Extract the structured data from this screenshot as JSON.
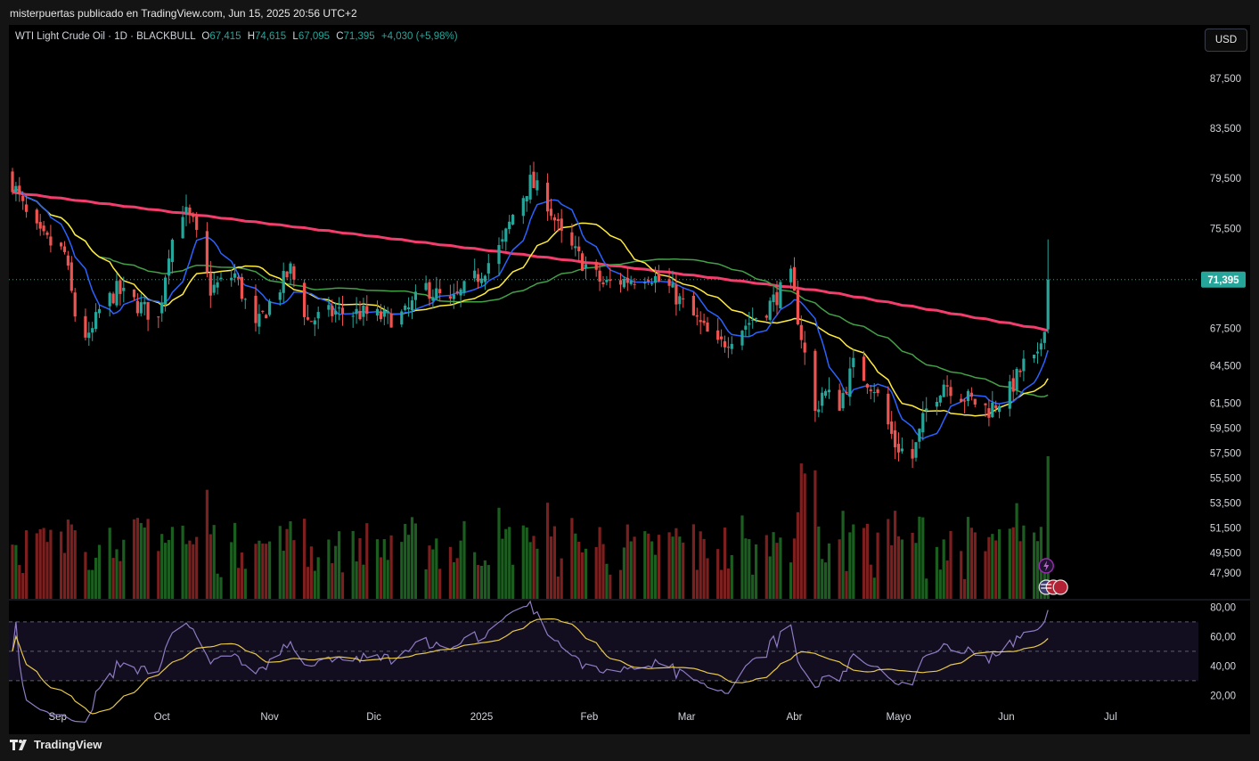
{
  "header": {
    "published_by": "misterpuertas publicado en TradingView.com, Jun 15, 2025 20:56 UTC+2"
  },
  "legend": {
    "symbol": "WTI Light Crude Oil · 1D · BLACKBULL",
    "open_label": "O",
    "open": "67,415",
    "high_label": "H",
    "high": "74,615",
    "low_label": "L",
    "low": "67,095",
    "close_label": "C",
    "close": "71,395",
    "change": "+4,030 (+5,98%)"
  },
  "currency_button": "USD",
  "price_tag": "71,395",
  "brand": "TradingView",
  "colors": {
    "up": "#26a69a",
    "down": "#ef5350",
    "vol_up": "#1b5e20",
    "vol_down": "#7b1f1f",
    "ma200": "#f23d6d",
    "ma50": "#43a047",
    "ma20": "#ffeb3b",
    "ma9": "#2962ff",
    "rsi": "#8e7cc3",
    "rsi_ma": "#e6c84a",
    "rsi_band": "#120d1f"
  },
  "icons": [
    "lightning-icon",
    "us-flag-icon",
    "events-icon"
  ],
  "chart_data": {
    "type": "candlestick",
    "price_axis": [
      "87,500",
      "83,500",
      "79,500",
      "75,500",
      "71,395",
      "67,500",
      "64,500",
      "61,500",
      "59,500",
      "57,500",
      "55,500",
      "53,500",
      "51,500",
      "49,500",
      "47,900"
    ],
    "price_axis_values": [
      87.5,
      83.5,
      79.5,
      75.5,
      71.395,
      67.5,
      64.5,
      61.5,
      59.5,
      57.5,
      55.5,
      53.5,
      51.5,
      49.5,
      47.9
    ],
    "rsi_axis": [
      "80,00",
      "60,00",
      "40,00",
      "20,00"
    ],
    "rsi_axis_values": [
      80,
      60,
      40,
      20
    ],
    "x_labels": [
      "Sep",
      "Oct",
      "Nov",
      "Dic",
      "2025",
      "Feb",
      "Mar",
      "Abr",
      "Mayo",
      "Jun",
      "Jul"
    ],
    "x_label_dates": [
      "2024-09-01",
      "2024-10-01",
      "2024-11-01",
      "2024-12-01",
      "2025-01-01",
      "2025-02-01",
      "2025-03-01",
      "2025-04-01",
      "2025-05-01",
      "2025-06-01",
      "2025-07-01"
    ],
    "close_anchors": [
      [
        "2024-08-19",
        79.2
      ],
      [
        "2024-08-23",
        76.5
      ],
      [
        "2024-08-27",
        74.8
      ],
      [
        "2024-09-03",
        73.5
      ],
      [
        "2024-09-06",
        68.6
      ],
      [
        "2024-09-10",
        66.5
      ],
      [
        "2024-09-13",
        68.9
      ],
      [
        "2024-09-18",
        70.5
      ],
      [
        "2024-09-25",
        69.2
      ],
      [
        "2024-09-30",
        68.2
      ],
      [
        "2024-10-03",
        73.8
      ],
      [
        "2024-10-07",
        77.0
      ],
      [
        "2024-10-10",
        75.8
      ],
      [
        "2024-10-15",
        70.6
      ],
      [
        "2024-10-22",
        71.8
      ],
      [
        "2024-10-28",
        67.4
      ],
      [
        "2024-11-01",
        69.5
      ],
      [
        "2024-11-07",
        72.2
      ],
      [
        "2024-11-12",
        68.1
      ],
      [
        "2024-11-20",
        68.8
      ],
      [
        "2024-11-27",
        68.7
      ],
      [
        "2024-12-05",
        68.3
      ],
      [
        "2024-12-10",
        68.6
      ],
      [
        "2024-12-16",
        70.8
      ],
      [
        "2024-12-23",
        69.4
      ],
      [
        "2024-12-31",
        71.7
      ],
      [
        "2025-01-07",
        74.2
      ],
      [
        "2025-01-10",
        76.6
      ],
      [
        "2025-01-15",
        79.2
      ],
      [
        "2025-01-20",
        77.6
      ],
      [
        "2025-01-24",
        74.8
      ],
      [
        "2025-01-31",
        72.5
      ],
      [
        "2025-02-05",
        71.0
      ],
      [
        "2025-02-12",
        71.4
      ],
      [
        "2025-02-18",
        71.9
      ],
      [
        "2025-02-24",
        70.7
      ],
      [
        "2025-03-03",
        68.4
      ],
      [
        "2025-03-10",
        66.0
      ],
      [
        "2025-03-17",
        67.6
      ],
      [
        "2025-03-24",
        69.1
      ],
      [
        "2025-03-31",
        71.5
      ],
      [
        "2025-04-03",
        66.9
      ],
      [
        "2025-04-07",
        60.7
      ],
      [
        "2025-04-09",
        62.4
      ],
      [
        "2025-04-14",
        61.5
      ],
      [
        "2025-04-18",
        64.5
      ],
      [
        "2025-04-24",
        62.8
      ],
      [
        "2025-04-30",
        58.2
      ],
      [
        "2025-05-05",
        57.1
      ],
      [
        "2025-05-09",
        61.0
      ],
      [
        "2025-05-14",
        63.2
      ],
      [
        "2025-05-20",
        62.0
      ],
      [
        "2025-05-27",
        61.0
      ],
      [
        "2025-06-02",
        62.5
      ],
      [
        "2025-06-06",
        64.6
      ],
      [
        "2025-06-10",
        64.9
      ],
      [
        "2025-06-12",
        68.0
      ],
      [
        "2025-06-13",
        71.395
      ]
    ],
    "last_bar": {
      "date": "2025-06-13",
      "open": 67.415,
      "high": 74.615,
      "low": 67.095,
      "close": 71.395
    },
    "moving_averages": [
      {
        "length": 200,
        "color": "#f23d6d"
      },
      {
        "length": 50,
        "color": "#43a047"
      },
      {
        "length": 20,
        "color": "#ffeb3b"
      },
      {
        "length": 9,
        "color": "#2962ff"
      }
    ],
    "rsi": {
      "period": 14,
      "bands": [
        70,
        50,
        30
      ]
    },
    "price_range": [
      46.7,
      89.5
    ],
    "rsi_range": [
      16,
      82
    ]
  }
}
